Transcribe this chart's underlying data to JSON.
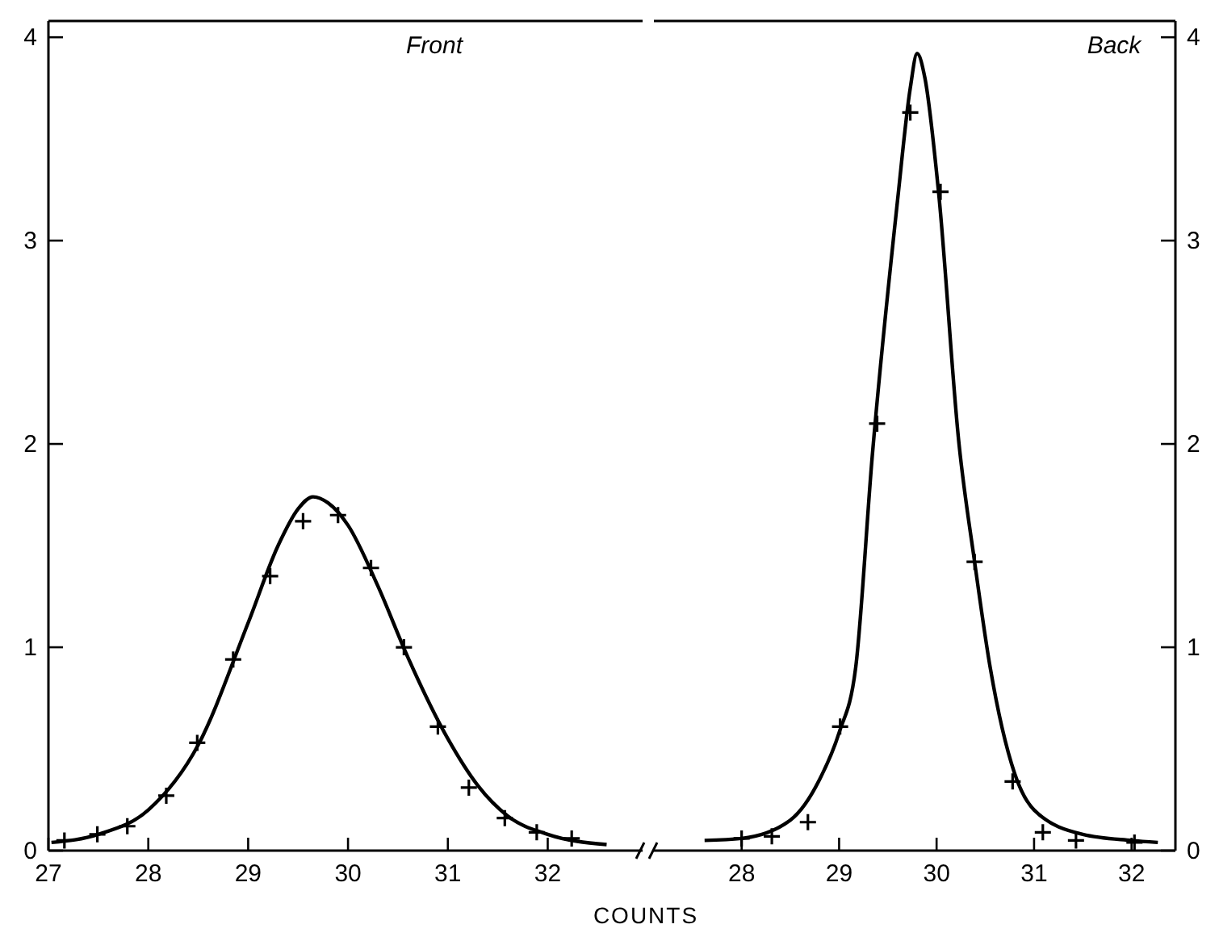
{
  "chart_data": [
    {
      "type": "scatter",
      "title": "Front",
      "xlabel": "COUNTS",
      "xlim": [
        27,
        32.95
      ],
      "xticks": [
        27,
        28,
        29,
        30,
        31,
        32
      ],
      "ylim": [
        0,
        4.08
      ],
      "yticks": [
        0,
        1,
        2,
        3,
        4
      ],
      "grid": false,
      "series": [
        {
          "marker": "cross",
          "color": "#000000",
          "x": [
            27.16,
            27.49,
            27.79,
            28.18,
            28.49,
            28.85,
            29.22,
            29.55,
            29.9,
            30.23,
            30.56,
            30.9,
            31.21,
            31.57,
            31.89,
            32.24
          ],
          "values": [
            0.05,
            0.08,
            0.12,
            0.27,
            0.53,
            0.94,
            1.35,
            1.62,
            1.65,
            1.39,
            1.0,
            0.61,
            0.31,
            0.16,
            0.09,
            0.06
          ]
        },
        {
          "type": "line",
          "color": "#000000",
          "line_style": "solid",
          "x": [
            27.03,
            27.5,
            28.0,
            28.5,
            29.0,
            29.3,
            29.5,
            29.65,
            29.8,
            30.0,
            30.3,
            30.6,
            31.0,
            31.3,
            31.6,
            32.0,
            32.59
          ],
          "values": [
            0.04,
            0.08,
            0.2,
            0.52,
            1.12,
            1.5,
            1.68,
            1.74,
            1.71,
            1.6,
            1.3,
            0.95,
            0.55,
            0.32,
            0.17,
            0.08,
            0.03
          ]
        }
      ]
    },
    {
      "type": "scatter",
      "title": "Back",
      "xlim": [
        27.1,
        32.45
      ],
      "xticks": [
        28,
        29,
        30,
        31,
        32
      ],
      "ylim": [
        0,
        4.08
      ],
      "yticks": [
        0,
        1,
        2,
        3,
        4
      ],
      "grid": false,
      "series": [
        {
          "marker": "cross",
          "color": "#000000",
          "x": [
            28.0,
            28.31,
            28.68,
            29.01,
            29.39,
            29.73,
            30.04,
            30.39,
            30.78,
            31.09,
            31.43,
            32.03
          ],
          "values": [
            0.06,
            0.07,
            0.14,
            0.61,
            2.1,
            3.63,
            3.24,
            1.42,
            0.34,
            0.09,
            0.05,
            0.04
          ]
        },
        {
          "type": "line",
          "color": "#000000",
          "line_style": "solid",
          "x": [
            27.62,
            28.0,
            28.5,
            28.8,
            29.0,
            29.17,
            29.34,
            29.6,
            29.73,
            29.8,
            29.88,
            30.02,
            30.23,
            30.39,
            30.55,
            30.8,
            31.0,
            31.5,
            32.0,
            32.27
          ],
          "values": [
            0.05,
            0.06,
            0.15,
            0.35,
            0.58,
            0.9,
            1.94,
            3.2,
            3.75,
            3.92,
            3.8,
            3.24,
            2.0,
            1.42,
            0.9,
            0.38,
            0.2,
            0.08,
            0.05,
            0.04
          ]
        }
      ]
    }
  ]
}
